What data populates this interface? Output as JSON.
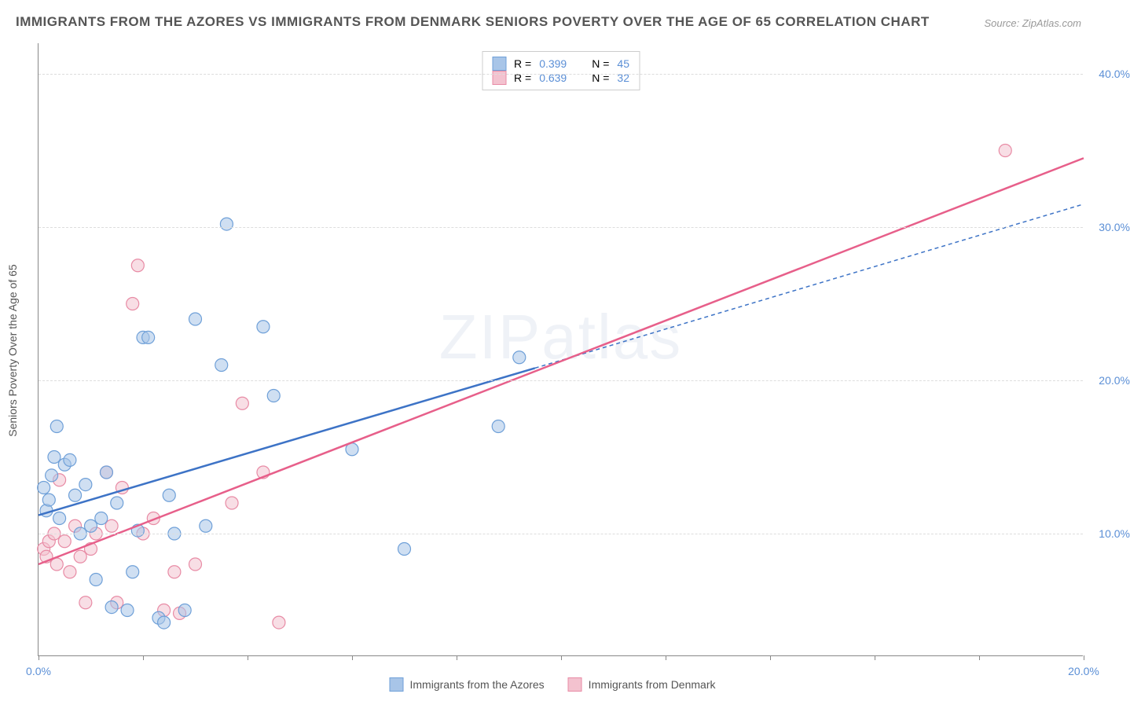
{
  "title": "IMMIGRANTS FROM THE AZORES VS IMMIGRANTS FROM DENMARK SENIORS POVERTY OVER THE AGE OF 65 CORRELATION CHART",
  "source": "Source: ZipAtlas.com",
  "watermark": "ZIPatlas",
  "y_axis_label": "Seniors Poverty Over the Age of 65",
  "series_a": {
    "label": "Immigrants from the Azores",
    "r_label": "R =",
    "r_value": "0.399",
    "n_label": "N =",
    "n_value": "45",
    "color_fill": "#a8c5e8",
    "color_stroke": "#6fa0d8",
    "line_color": "#3d73c6",
    "line_dash": "none",
    "line_dash_ext": "5,4",
    "trend": {
      "x1": 0.0,
      "y1": 11.2,
      "x2": 9.5,
      "y2": 20.8,
      "x2_ext": 20.0,
      "y2_ext": 31.5
    },
    "points": [
      {
        "x": 0.1,
        "y": 13.0
      },
      {
        "x": 0.15,
        "y": 11.5
      },
      {
        "x": 0.2,
        "y": 12.2
      },
      {
        "x": 0.25,
        "y": 13.8
      },
      {
        "x": 0.3,
        "y": 15.0
      },
      {
        "x": 0.35,
        "y": 17.0
      },
      {
        "x": 0.4,
        "y": 11.0
      },
      {
        "x": 0.5,
        "y": 14.5
      },
      {
        "x": 0.6,
        "y": 14.8
      },
      {
        "x": 0.7,
        "y": 12.5
      },
      {
        "x": 0.8,
        "y": 10.0
      },
      {
        "x": 0.9,
        "y": 13.2
      },
      {
        "x": 1.0,
        "y": 10.5
      },
      {
        "x": 1.1,
        "y": 7.0
      },
      {
        "x": 1.2,
        "y": 11.0
      },
      {
        "x": 1.3,
        "y": 14.0
      },
      {
        "x": 1.4,
        "y": 5.2
      },
      {
        "x": 1.5,
        "y": 12.0
      },
      {
        "x": 1.7,
        "y": 5.0
      },
      {
        "x": 1.8,
        "y": 7.5
      },
      {
        "x": 1.9,
        "y": 10.2
      },
      {
        "x": 2.0,
        "y": 22.8
      },
      {
        "x": 2.1,
        "y": 22.8
      },
      {
        "x": 2.3,
        "y": 4.5
      },
      {
        "x": 2.4,
        "y": 4.2
      },
      {
        "x": 2.5,
        "y": 12.5
      },
      {
        "x": 2.6,
        "y": 10.0
      },
      {
        "x": 2.8,
        "y": 5.0
      },
      {
        "x": 3.0,
        "y": 24.0
      },
      {
        "x": 3.2,
        "y": 10.5
      },
      {
        "x": 3.5,
        "y": 21.0
      },
      {
        "x": 3.6,
        "y": 30.2
      },
      {
        "x": 4.3,
        "y": 23.5
      },
      {
        "x": 4.5,
        "y": 19.0
      },
      {
        "x": 6.0,
        "y": 15.5
      },
      {
        "x": 7.0,
        "y": 9.0
      },
      {
        "x": 8.8,
        "y": 17.0
      },
      {
        "x": 9.2,
        "y": 21.5
      }
    ]
  },
  "series_b": {
    "label": "Immigrants from Denmark",
    "r_label": "R =",
    "r_value": "0.639",
    "n_label": "N =",
    "n_value": "32",
    "color_fill": "#f3c2cf",
    "color_stroke": "#e88ba5",
    "line_color": "#e75f8a",
    "line_dash": "none",
    "trend": {
      "x1": 0.0,
      "y1": 8.0,
      "x2": 20.0,
      "y2": 34.5
    },
    "points": [
      {
        "x": 0.1,
        "y": 9.0
      },
      {
        "x": 0.15,
        "y": 8.5
      },
      {
        "x": 0.2,
        "y": 9.5
      },
      {
        "x": 0.3,
        "y": 10.0
      },
      {
        "x": 0.35,
        "y": 8.0
      },
      {
        "x": 0.4,
        "y": 13.5
      },
      {
        "x": 0.5,
        "y": 9.5
      },
      {
        "x": 0.6,
        "y": 7.5
      },
      {
        "x": 0.7,
        "y": 10.5
      },
      {
        "x": 0.8,
        "y": 8.5
      },
      {
        "x": 0.9,
        "y": 5.5
      },
      {
        "x": 1.0,
        "y": 9.0
      },
      {
        "x": 1.1,
        "y": 10.0
      },
      {
        "x": 1.3,
        "y": 14.0
      },
      {
        "x": 1.4,
        "y": 10.5
      },
      {
        "x": 1.5,
        "y": 5.5
      },
      {
        "x": 1.6,
        "y": 13.0
      },
      {
        "x": 1.8,
        "y": 25.0
      },
      {
        "x": 1.9,
        "y": 27.5
      },
      {
        "x": 2.0,
        "y": 10.0
      },
      {
        "x": 2.2,
        "y": 11.0
      },
      {
        "x": 2.4,
        "y": 5.0
      },
      {
        "x": 2.6,
        "y": 7.5
      },
      {
        "x": 2.7,
        "y": 4.8
      },
      {
        "x": 3.0,
        "y": 8.0
      },
      {
        "x": 3.7,
        "y": 12.0
      },
      {
        "x": 3.9,
        "y": 18.5
      },
      {
        "x": 4.3,
        "y": 14.0
      },
      {
        "x": 4.6,
        "y": 4.2
      },
      {
        "x": 18.5,
        "y": 35.0
      }
    ]
  },
  "x_axis": {
    "min": 0.0,
    "max": 20.0,
    "ticks": [
      0.0,
      20.0
    ],
    "tick_labels": [
      "0.0%",
      "20.0%"
    ],
    "minor_ticks": [
      2.0,
      4.0,
      6.0,
      8.0,
      10.0,
      12.0,
      14.0,
      16.0,
      18.0
    ]
  },
  "y_axis": {
    "min": 2.0,
    "max": 42.0,
    "ticks": [
      10.0,
      20.0,
      30.0,
      40.0
    ],
    "tick_labels": [
      "10.0%",
      "20.0%",
      "30.0%",
      "40.0%"
    ]
  },
  "chart_style": {
    "background_color": "#ffffff",
    "grid_color": "#dddddd",
    "axis_color": "#888888",
    "marker_radius": 8,
    "marker_opacity": 0.55,
    "line_width": 2.5,
    "title_fontsize": 17,
    "label_fontsize": 14
  }
}
